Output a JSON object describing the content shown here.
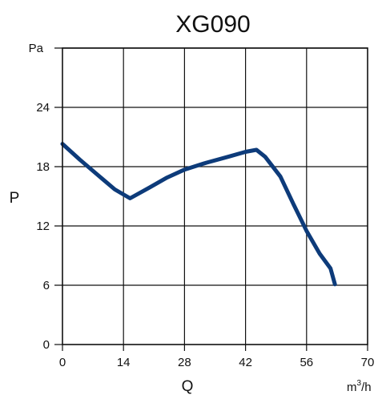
{
  "chart_data": {
    "type": "line",
    "title": "XG090",
    "xlabel": "Q",
    "ylabel": "P",
    "x_unit": {
      "base": "m",
      "sup": "3",
      "rest": "/h"
    },
    "y_unit": "Pa",
    "xlim": [
      0,
      70
    ],
    "ylim": [
      0,
      30
    ],
    "x_ticks": [
      0,
      14,
      28,
      42,
      56,
      70
    ],
    "y_ticks": [
      0,
      6,
      12,
      18,
      24
    ],
    "grid": true,
    "line_color": "#0d3b7a",
    "series": [
      {
        "x": [
          0,
          4,
          8,
          12,
          15.5,
          20,
          24,
          28,
          33,
          38,
          42,
          44.5,
          46.5,
          50,
          53,
          56,
          59,
          61.5,
          62.5
        ],
        "y": [
          20.3,
          18.7,
          17.2,
          15.7,
          14.8,
          15.9,
          16.9,
          17.7,
          18.4,
          19.0,
          19.5,
          19.7,
          19.0,
          17.0,
          14.2,
          11.5,
          9.2,
          7.7,
          6.1
        ]
      }
    ]
  }
}
